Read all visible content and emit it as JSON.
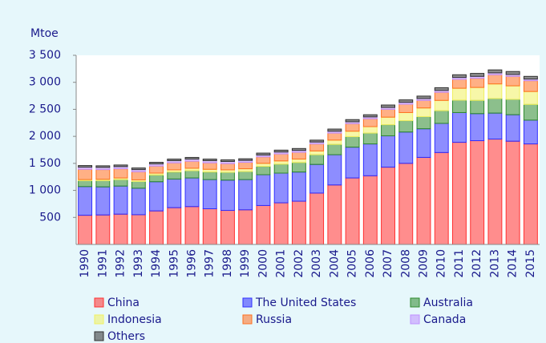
{
  "chart_data": {
    "type": "stacked_bar",
    "y_axis_label": "Mtoe",
    "categories": [
      "1990",
      "1991",
      "1992",
      "1993",
      "1994",
      "1995",
      "1996",
      "1997",
      "1998",
      "1999",
      "2000",
      "2001",
      "2002",
      "2003",
      "2004",
      "2005",
      "2006",
      "2007",
      "2008",
      "2009",
      "2010",
      "2011",
      "2012",
      "2013",
      "2014",
      "2015"
    ],
    "series": [
      {
        "name": "China",
        "color": "#ff3030",
        "values": [
          540,
          545,
          560,
          550,
          620,
          680,
          700,
          660,
          630,
          640,
          720,
          770,
          800,
          950,
          1100,
          1230,
          1270,
          1430,
          1500,
          1610,
          1700,
          1890,
          1920,
          1950,
          1910,
          1860
        ]
      },
      {
        "name": "The United States",
        "color": "#3030ff",
        "values": [
          530,
          520,
          520,
          490,
          540,
          530,
          530,
          540,
          560,
          560,
          570,
          550,
          540,
          530,
          560,
          570,
          590,
          580,
          580,
          530,
          540,
          550,
          500,
          480,
          490,
          440
        ]
      },
      {
        "name": "Australia",
        "color": "#2e8b2e",
        "values": [
          110,
          115,
          120,
          125,
          125,
          130,
          135,
          140,
          145,
          150,
          155,
          165,
          175,
          180,
          190,
          195,
          200,
          205,
          210,
          225,
          235,
          230,
          245,
          270,
          285,
          290
        ]
      },
      {
        "name": "Indonesia",
        "color": "#f0f060",
        "values": [
          20,
          25,
          30,
          30,
          35,
          40,
          45,
          50,
          45,
          50,
          55,
          60,
          65,
          70,
          80,
          100,
          120,
          140,
          150,
          160,
          190,
          220,
          240,
          270,
          250,
          240
        ]
      },
      {
        "name": "Russia",
        "color": "#ff7020",
        "values": [
          190,
          180,
          170,
          150,
          130,
          130,
          130,
          120,
          115,
          120,
          120,
          130,
          125,
          130,
          130,
          140,
          145,
          145,
          155,
          140,
          150,
          165,
          170,
          170,
          175,
          200
        ]
      },
      {
        "name": "Canada",
        "color": "#c090ff",
        "values": [
          40,
          40,
          40,
          40,
          40,
          40,
          40,
          40,
          40,
          35,
          35,
          35,
          35,
          35,
          35,
          35,
          35,
          35,
          35,
          35,
          35,
          35,
          35,
          35,
          35,
          30
        ]
      },
      {
        "name": "Others",
        "color": "#303030",
        "values": [
          30,
          30,
          30,
          30,
          30,
          30,
          30,
          30,
          30,
          30,
          35,
          35,
          35,
          35,
          40,
          40,
          40,
          45,
          45,
          45,
          50,
          50,
          55,
          55,
          55,
          50
        ]
      }
    ],
    "ylim": [
      0,
      3500
    ],
    "yticks": [
      500,
      {
        "value": 1000,
        "label": "1 000"
      },
      {
        "value": 1500,
        "label": "1 500"
      },
      {
        "value": 2000,
        "label": "2 000"
      },
      {
        "value": 2500,
        "label": "2 500"
      },
      {
        "value": 3000,
        "label": "3 000"
      },
      {
        "value": 3500,
        "label": "3 500"
      }
    ]
  }
}
